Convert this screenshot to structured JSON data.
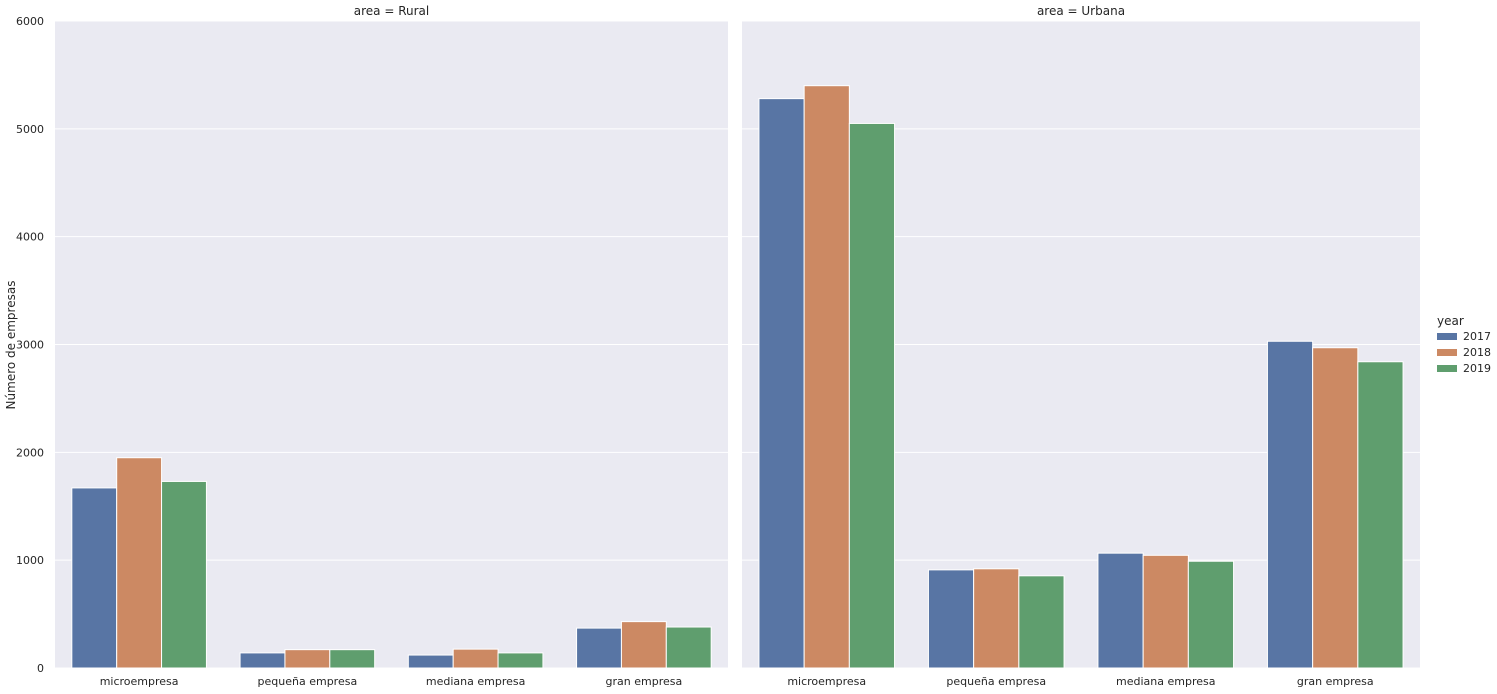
{
  "chart_data": {
    "type": "bar",
    "ylabel": "Número de empresas",
    "ylim": [
      0,
      6000
    ],
    "yticks": [
      "0",
      "1000",
      "2000",
      "3000",
      "4000",
      "5000",
      "6000"
    ],
    "grid": true,
    "legend": {
      "title": "year",
      "placement": "right"
    },
    "categories": [
      "microempresa",
      "pequeña empresa",
      "mediana empresa",
      "gran empresa"
    ],
    "colors": [
      "#5875a4",
      "#cc8963",
      "#5f9e6e"
    ],
    "series_names": [
      "2017",
      "2018",
      "2019"
    ],
    "facets": [
      {
        "title": "area = Rural",
        "series": [
          {
            "name": "2017",
            "values": [
              1670,
              140,
              120,
              370
            ]
          },
          {
            "name": "2018",
            "values": [
              1950,
              170,
              175,
              430
            ]
          },
          {
            "name": "2019",
            "values": [
              1730,
              170,
              140,
              380
            ]
          }
        ]
      },
      {
        "title": "area = Urbana",
        "series": [
          {
            "name": "2017",
            "values": [
              5280,
              910,
              1065,
              3030
            ]
          },
          {
            "name": "2018",
            "values": [
              5400,
              920,
              1045,
              2970
            ]
          },
          {
            "name": "2019",
            "values": [
              5050,
              855,
              990,
              2840
            ]
          }
        ]
      }
    ]
  }
}
